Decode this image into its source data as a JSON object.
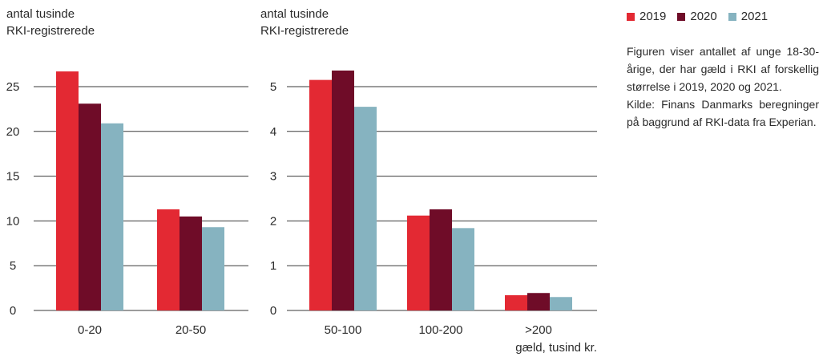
{
  "colors": {
    "2019": "#e32933",
    "2020": "#6f0c28",
    "2021": "#86b3c0"
  },
  "legend": [
    "2019",
    "2020",
    "2021"
  ],
  "note": {
    "description": "Figuren viser antallet af unge 18-30-årige, der har gæld i RKI af forskellig størrelse i 2019, 2020 og 2021.",
    "source": "Kilde: Finans Danmarks beregninger på baggrund af RKI-data fra Experian."
  },
  "chart_data": [
    {
      "type": "bar",
      "ylabel_line1": "antal tusinde",
      "ylabel_line2": "RKI-registrerede",
      "xlabel": "",
      "categories": [
        "0-20",
        "20-50"
      ],
      "series": [
        {
          "name": "2019",
          "values": [
            26.7,
            11.3
          ]
        },
        {
          "name": "2020",
          "values": [
            23.1,
            10.5
          ]
        },
        {
          "name": "2021",
          "values": [
            20.9,
            9.3
          ]
        }
      ],
      "ylim": [
        0,
        25
      ],
      "yticks": [
        0,
        5,
        10,
        15,
        20,
        25
      ],
      "grid": true
    },
    {
      "type": "bar",
      "ylabel_line1": "antal tusinde",
      "ylabel_line2": "RKI-registrerede",
      "xlabel": "gæld, tusind kr.",
      "categories": [
        "50-100",
        "100-200",
        ">200"
      ],
      "series": [
        {
          "name": "2019",
          "values": [
            5.15,
            2.12,
            0.34
          ]
        },
        {
          "name": "2020",
          "values": [
            5.36,
            2.26,
            0.39
          ]
        },
        {
          "name": "2021",
          "values": [
            4.55,
            1.84,
            0.3
          ]
        }
      ],
      "ylim": [
        0,
        5
      ],
      "yticks": [
        0,
        1,
        2,
        3,
        4,
        5
      ],
      "grid": true
    }
  ]
}
